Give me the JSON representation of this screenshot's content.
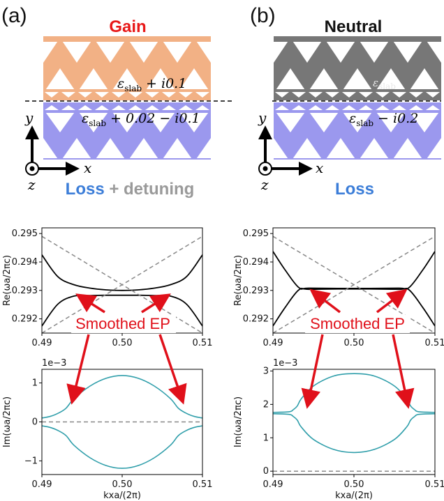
{
  "panels": [
    {
      "letter": "(a)",
      "title": "Gain",
      "title_color": "#e81818",
      "top_color": "#f2b185",
      "bottom_color": "#9b98ee",
      "eps_top_main": "ε",
      "eps_top_sub": "slab",
      "eps_top_rest": "+ i0.1",
      "eps_bot_main": "ε",
      "eps_bot_sub": "slab",
      "eps_bot_rest": "+ 0.02 − i0.1",
      "axis_y": "y",
      "axis_x": "x",
      "axis_z": "z",
      "bottom_label_part1": "Loss",
      "bottom_label_part1_color": "#3b7dd8",
      "bottom_label_part2": " + detuning",
      "bottom_label_part2_color": "#9a9a9a",
      "ep_text": "Smoothed EP"
    },
    {
      "letter": "(b)",
      "title": "Neutral",
      "title_color": "#111111",
      "top_color": "#777777",
      "bottom_color": "#9b98ee",
      "eps_top_main": "ε",
      "eps_top_sub": "slab",
      "eps_top_rest": "",
      "eps_bot_main": "ε",
      "eps_bot_sub": "slab",
      "eps_bot_rest": "− i0.2",
      "axis_y": "y",
      "axis_x": "x",
      "axis_z": "z",
      "bottom_label_part1": "Loss",
      "bottom_label_part1_color": "#3b7dd8",
      "bottom_label_part2": "",
      "bottom_label_part2_color": "#9a9a9a",
      "ep_text": "Smoothed EP"
    }
  ],
  "chart_data": [
    {
      "id": "a-re",
      "type": "line",
      "ylabel": "Re(ωa/2πc)",
      "xlabel": "",
      "xlim": [
        0.49,
        0.51
      ],
      "ylim": [
        0.2915,
        0.2952
      ],
      "xticks": [
        "0.49",
        "0.50",
        "0.51"
      ],
      "yticks": [
        "0.292",
        "0.293",
        "0.294",
        "0.295"
      ],
      "multiplier": "",
      "series": [
        {
          "style": "black",
          "x": [
            0.49,
            0.492,
            0.494,
            0.496,
            0.498,
            0.5,
            0.502,
            0.504,
            0.506,
            0.508,
            0.51
          ],
          "y": [
            0.29425,
            0.29348,
            0.2932,
            0.29308,
            0.29302,
            0.293,
            0.29302,
            0.29308,
            0.2932,
            0.29348,
            0.29425
          ]
        },
        {
          "style": "black",
          "x": [
            0.49,
            0.492,
            0.494,
            0.496,
            0.498,
            0.5,
            0.502,
            0.504,
            0.506,
            0.508,
            0.51
          ],
          "y": [
            0.29175,
            0.29252,
            0.2928,
            0.29282,
            0.29283,
            0.29283,
            0.29283,
            0.29282,
            0.2928,
            0.29252,
            0.29175
          ]
        },
        {
          "style": "dash",
          "x": [
            0.49,
            0.51
          ],
          "y": [
            0.2949,
            0.2915
          ]
        },
        {
          "style": "dash",
          "x": [
            0.49,
            0.51
          ],
          "y": [
            0.2915,
            0.2949
          ]
        }
      ]
    },
    {
      "id": "b-re",
      "type": "line",
      "ylabel": "Re(ωa/2πc)",
      "xlabel": "",
      "xlim": [
        0.49,
        0.51
      ],
      "ylim": [
        0.2915,
        0.2952
      ],
      "xticks": [
        "0.49",
        "0.50",
        "0.51"
      ],
      "yticks": [
        "0.292",
        "0.293",
        "0.294",
        "0.295"
      ],
      "multiplier": "",
      "series": [
        {
          "style": "black",
          "x": [
            0.49,
            0.4915,
            0.4932,
            0.4945,
            0.5,
            0.5055,
            0.5068,
            0.5085,
            0.51
          ],
          "y": [
            0.29437,
            0.29372,
            0.2931,
            0.29308,
            0.29307,
            0.29308,
            0.2931,
            0.29372,
            0.29437
          ]
        },
        {
          "style": "black",
          "x": [
            0.49,
            0.4915,
            0.4932,
            0.4945,
            0.5,
            0.5055,
            0.5068,
            0.5085,
            0.51
          ],
          "y": [
            0.29175,
            0.2924,
            0.29302,
            0.29304,
            0.29305,
            0.29304,
            0.29302,
            0.2924,
            0.29175
          ]
        },
        {
          "style": "dash",
          "x": [
            0.49,
            0.51
          ],
          "y": [
            0.2949,
            0.2915
          ]
        },
        {
          "style": "dash",
          "x": [
            0.49,
            0.51
          ],
          "y": [
            0.2915,
            0.2949
          ]
        }
      ]
    },
    {
      "id": "a-im",
      "type": "line",
      "ylabel": "Im(ωa/2πc)",
      "xlabel": "kxa/(2π)",
      "xlim": [
        0.49,
        0.51
      ],
      "ylim": [
        -1.35,
        1.35
      ],
      "xticks": [
        "0.49",
        "0.50",
        "0.51"
      ],
      "yticks": [
        "−1",
        "0",
        "1"
      ],
      "ytick_values": [
        -1,
        0,
        1
      ],
      "multiplier": "1e−3",
      "series": [
        {
          "style": "teal",
          "x": [
            0.49,
            0.491,
            0.492,
            0.493,
            0.494,
            0.496,
            0.498,
            0.5,
            0.502,
            0.504,
            0.506,
            0.507,
            0.508,
            0.509,
            0.51
          ],
          "y": [
            0.1,
            0.14,
            0.22,
            0.35,
            0.6,
            0.92,
            1.12,
            1.19,
            1.12,
            0.92,
            0.6,
            0.35,
            0.22,
            0.14,
            0.1
          ]
        },
        {
          "style": "teal",
          "x": [
            0.49,
            0.491,
            0.492,
            0.493,
            0.494,
            0.496,
            0.498,
            0.5,
            0.502,
            0.504,
            0.506,
            0.507,
            0.508,
            0.509,
            0.51
          ],
          "y": [
            -0.1,
            -0.14,
            -0.22,
            -0.35,
            -0.6,
            -0.92,
            -1.12,
            -1.19,
            -1.12,
            -0.92,
            -0.6,
            -0.35,
            -0.22,
            -0.14,
            -0.1
          ]
        },
        {
          "style": "dash",
          "x": [
            0.49,
            0.51
          ],
          "y": [
            0,
            0
          ]
        }
      ]
    },
    {
      "id": "b-im",
      "type": "line",
      "ylabel": "Im(ωa/2πc)",
      "xlabel": "kxa/(2π)",
      "xlim": [
        0.49,
        0.51
      ],
      "ylim": [
        -0.1,
        3.05
      ],
      "xticks": [
        "0.49",
        "0.50",
        "0.51"
      ],
      "yticks": [
        "0",
        "1",
        "2",
        "3"
      ],
      "ytick_values": [
        0,
        1,
        2,
        3
      ],
      "multiplier": "1e−3",
      "series": [
        {
          "style": "teal",
          "x": [
            0.49,
            0.492,
            0.4925,
            0.493,
            0.4935,
            0.495,
            0.4975,
            0.5,
            0.5025,
            0.505,
            0.5065,
            0.507,
            0.5075,
            0.508,
            0.51
          ],
          "y": [
            1.76,
            1.78,
            1.84,
            1.95,
            2.17,
            2.55,
            2.85,
            2.92,
            2.85,
            2.55,
            2.17,
            1.95,
            1.84,
            1.78,
            1.76
          ]
        },
        {
          "style": "teal",
          "x": [
            0.49,
            0.492,
            0.4925,
            0.493,
            0.4935,
            0.495,
            0.4975,
            0.5,
            0.5025,
            0.505,
            0.5065,
            0.507,
            0.5075,
            0.508,
            0.51
          ],
          "y": [
            1.72,
            1.7,
            1.64,
            1.53,
            1.32,
            0.95,
            0.65,
            0.56,
            0.65,
            0.95,
            1.32,
            1.53,
            1.64,
            1.7,
            1.72
          ]
        },
        {
          "style": "dash",
          "x": [
            0.49,
            0.51
          ],
          "y": [
            0,
            0
          ]
        }
      ]
    }
  ]
}
